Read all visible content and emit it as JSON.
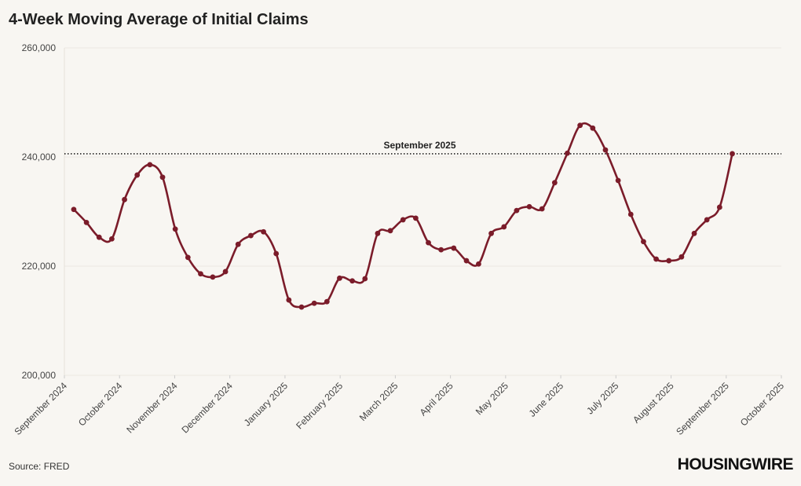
{
  "chart_data": {
    "type": "line",
    "title": "4-Week Moving Average of Initial Claims",
    "source": "Source: FRED",
    "logo": "HOUSINGWIRE",
    "xlim": [
      0,
      13
    ],
    "xticks": [
      {
        "value": 0,
        "label": "September 2024"
      },
      {
        "value": 1,
        "label": "October 2024"
      },
      {
        "value": 2,
        "label": "November 2024"
      },
      {
        "value": 3,
        "label": "December 2024"
      },
      {
        "value": 4,
        "label": "January 2025"
      },
      {
        "value": 5,
        "label": "February 2025"
      },
      {
        "value": 6,
        "label": "March 2025"
      },
      {
        "value": 7,
        "label": "April 2025"
      },
      {
        "value": 8,
        "label": "May 2025"
      },
      {
        "value": 9,
        "label": "June 2025"
      },
      {
        "value": 10,
        "label": "July 2025"
      },
      {
        "value": 11,
        "label": "August 2025"
      },
      {
        "value": 12,
        "label": "September 2025"
      },
      {
        "value": 13,
        "label": "October 2025"
      }
    ],
    "ylim": [
      200000,
      260000
    ],
    "yticks": [
      {
        "value": 200000,
        "label": "200,000"
      },
      {
        "value": 220000,
        "label": "220,000"
      },
      {
        "value": 240000,
        "label": "240,000"
      },
      {
        "value": 260000,
        "label": "260,000"
      }
    ],
    "grid": true,
    "x": [
      0.17,
      0.4,
      0.63,
      0.86,
      1.09,
      1.32,
      1.55,
      1.78,
      2.01,
      2.24,
      2.47,
      2.69,
      2.92,
      3.15,
      3.38,
      3.61,
      3.84,
      4.07,
      4.3,
      4.53,
      4.76,
      4.99,
      5.22,
      5.45,
      5.68,
      5.91,
      6.14,
      6.37,
      6.6,
      6.83,
      7.06,
      7.29,
      7.51,
      7.74,
      7.97,
      8.2,
      8.43,
      8.66,
      8.89,
      9.12,
      9.35,
      9.58,
      9.81,
      10.04,
      10.27,
      10.5,
      10.73,
      10.96,
      11.19,
      11.42,
      11.65,
      11.88,
      12.11
    ],
    "series": [
      {
        "name": "4-Week Moving Average of Initial Claims",
        "color": "#7b1c2a",
        "values": [
          230400,
          228000,
          225300,
          225000,
          232200,
          236700,
          238600,
          236300,
          226800,
          221600,
          218600,
          218000,
          219000,
          224000,
          225600,
          226300,
          222300,
          213800,
          212500,
          213200,
          213500,
          217800,
          217300,
          217700,
          226000,
          226500,
          228500,
          228800,
          224300,
          223000,
          223300,
          221000,
          220400,
          226000,
          227200,
          230200,
          230900,
          230500,
          235300,
          240700,
          245800,
          245300,
          241300,
          235700,
          229500,
          224500,
          221300,
          221000,
          221700,
          226000,
          228500,
          230800,
          240600
        ]
      }
    ],
    "annotation": {
      "label": "September 2025",
      "value": 240600
    }
  }
}
